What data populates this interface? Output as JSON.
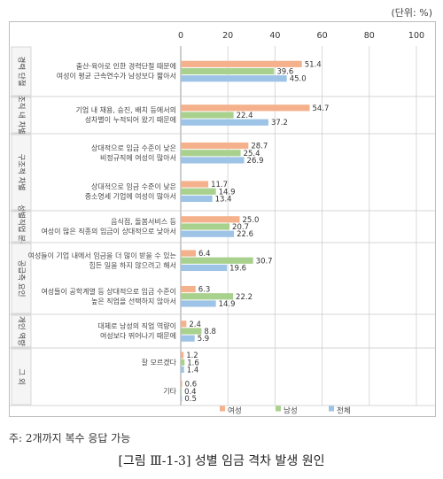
{
  "unit_label": "(단위: %)",
  "note": "주: 2개까지 복수 응답 가능",
  "caption": "[그림 Ⅲ-1-3] 성별 임금 격차 발생 원인",
  "chart_data": {
    "type": "bar",
    "orientation": "horizontal",
    "xlim": [
      0,
      100
    ],
    "xticks": [
      0,
      20,
      40,
      60,
      80,
      100
    ],
    "grid": true,
    "legend_position": "bottom",
    "series": [
      {
        "name": "여성",
        "color": "#f4b18c"
      },
      {
        "name": "남성",
        "color": "#a9d18e"
      },
      {
        "name": "전체",
        "color": "#9dc3e6"
      }
    ],
    "groups": [
      {
        "label": "경력 단절",
        "items": [
          {
            "label": [
              "출산·육아로 인한 경력단절 때문에",
              "여성이 평균 근속연수가 남성보다 짧아서"
            ],
            "values": [
              51.4,
              39.6,
              45.0
            ],
            "value_labels": [
              "51.4",
              "39.6",
              "45.0"
            ]
          }
        ]
      },
      {
        "label": "조직 내 차별",
        "items": [
          {
            "label": [
              "기업 내 채용, 승진, 배치 등에서의",
              "성차별이 누적되어 왔기 때문에"
            ],
            "values": [
              54.7,
              22.4,
              37.2
            ],
            "value_labels": [
              "54.7",
              "22.4",
              "37.2"
            ]
          }
        ]
      },
      {
        "label": "구조적 차별",
        "items": [
          {
            "label": [
              "상대적으로 임금 수준이 낮은",
              "비정규직에 여성이 많아서"
            ],
            "values": [
              28.7,
              25.4,
              26.9
            ],
            "value_labels": [
              "28.7",
              "25.4",
              "26.9"
            ]
          },
          {
            "label": [
              "상대적으로 임금 수준이 낮은",
              "중소영세 기업에 여성이 많아서"
            ],
            "values": [
              11.7,
              14.9,
              13.4
            ],
            "value_labels": [
              "11.7",
              "14.9",
              "13.4"
            ]
          }
        ]
      },
      {
        "label": "성별직업 분리",
        "items": [
          {
            "label": [
              "음식점, 돌봄서비스 등",
              "여성이 많은 직종의 임금이 상대적으로 낮아서"
            ],
            "values": [
              25.0,
              20.7,
              22.6
            ],
            "value_labels": [
              "25.0",
              "20.7",
              "22.6"
            ]
          }
        ]
      },
      {
        "label": "공급측 요인",
        "items": [
          {
            "label": [
              "여성들이 기업 내에서 임금을 더 많이 받을 수 있는",
              "힘든 일을 하지 않으려고 해서"
            ],
            "values": [
              6.4,
              30.7,
              19.6
            ],
            "value_labels": [
              "6.4",
              "30.7",
              "19.6"
            ]
          },
          {
            "label": [
              "여성들이 공학계열 등 상대적으로 임금 수준이",
              "높은 직업을 선택하지 않아서"
            ],
            "values": [
              6.3,
              22.2,
              14.9
            ],
            "value_labels": [
              "6.3",
              "22.2",
              "14.9"
            ]
          }
        ]
      },
      {
        "label": "개인 역량",
        "items": [
          {
            "label": [
              "대체로 남성의 직업 역량이",
              "여성보다 뛰어나기 때문에"
            ],
            "values": [
              2.4,
              8.8,
              5.9
            ],
            "value_labels": [
              "2.4",
              "8.8",
              "5.9"
            ]
          }
        ]
      },
      {
        "label": "그 외",
        "items": [
          {
            "label": [
              "잘 모르겠다"
            ],
            "values": [
              1.2,
              1.6,
              1.4
            ],
            "value_labels": [
              "1.2",
              "1.6",
              "1.4"
            ]
          },
          {
            "label": [
              "기타"
            ],
            "values": [
              0.6,
              0.4,
              0.5
            ],
            "value_labels": [
              "0.6",
              "0.4",
              "0.5"
            ]
          }
        ]
      }
    ]
  }
}
